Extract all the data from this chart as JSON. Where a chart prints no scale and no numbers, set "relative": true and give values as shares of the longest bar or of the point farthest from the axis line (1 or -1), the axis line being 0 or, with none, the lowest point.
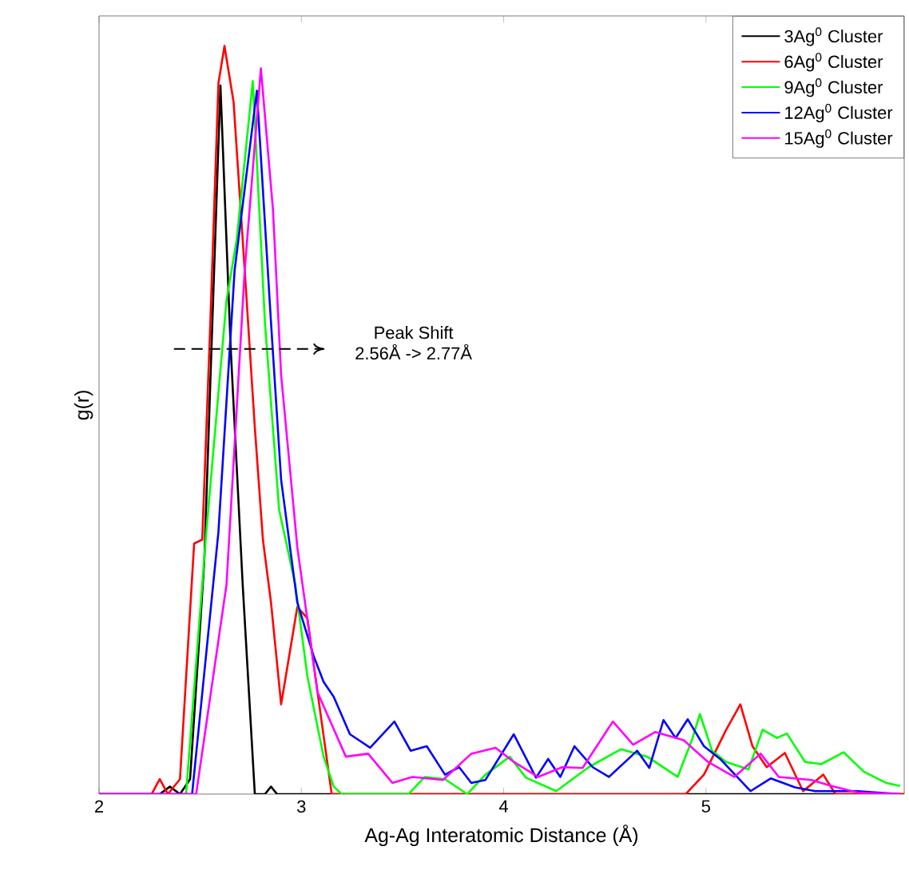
{
  "chart_data": {
    "type": "line",
    "relative": true,
    "xlabel": "Ag-Ag Interatomic Distance (Å)",
    "ylabel": "g(r)",
    "xlim": [
      2,
      5.98
    ],
    "xticks": [
      2,
      3,
      4,
      5
    ],
    "tick_labels": "x",
    "legend": "top right",
    "annotations": [
      "Peak Shift",
      "2.56Å -> 2.77Å"
    ],
    "series": [
      {
        "name": "3Ag$^{0}$ Cluster",
        "color": "#000000",
        "x": [
          2,
          2.3,
          2.35,
          2.4,
          2.45,
          2.52,
          2.56,
          2.6,
          2.65,
          2.71,
          2.77,
          2.82,
          2.85,
          2.88,
          5.98
        ],
        "values": [
          0,
          0,
          0.01,
          0,
          0.02,
          0.31,
          0.63,
          0.947,
          0.6,
          0.28,
          0,
          0,
          0.01,
          0,
          0
        ]
      },
      {
        "name": "6Ag$^{0}$ Cluster",
        "color": "#ff0000",
        "x": [
          2,
          2.26,
          2.3,
          2.34,
          2.4,
          2.47,
          2.51,
          2.55,
          2.59,
          2.62,
          2.665,
          2.72,
          2.77,
          2.81,
          2.85,
          2.9,
          2.94,
          2.98,
          3.03,
          3.08,
          3.15,
          4.9,
          4.99,
          5.1,
          5.17,
          5.23,
          5.3,
          5.39,
          5.48,
          5.58,
          5.64,
          5.98
        ],
        "values": [
          0,
          0,
          0.02,
          0,
          0.02,
          0.335,
          0.34,
          0.63,
          0.95,
          1,
          0.925,
          0.7,
          0.49,
          0.34,
          0.256,
          0.12,
          0.185,
          0.25,
          0.235,
          0.136,
          0,
          0,
          0.026,
          0.086,
          0.12,
          0.064,
          0.036,
          0.055,
          0.004,
          0.026,
          0,
          0
        ]
      },
      {
        "name": "9Ag$^{0}$ Cluster",
        "color": "#00ff00",
        "x": [
          2,
          2.43,
          2.53,
          2.63,
          2.68,
          2.76,
          2.82,
          2.89,
          2.97,
          3.03,
          3.11,
          3.16,
          3.2,
          3.53,
          3.61,
          3.71,
          3.82,
          3.91,
          4.03,
          4.11,
          4.26,
          4.42,
          4.58,
          4.71,
          4.86,
          4.93,
          4.97,
          5.03,
          5.1,
          5.21,
          5.28,
          5.35,
          5.4,
          5.49,
          5.57,
          5.68,
          5.78,
          5.89,
          5.96
        ],
        "values": [
          0,
          0,
          0.35,
          0.66,
          0.74,
          0.953,
          0.63,
          0.38,
          0.28,
          0.157,
          0.05,
          0.01,
          0,
          0,
          0.023,
          0.02,
          0,
          0.026,
          0.05,
          0.022,
          0.004,
          0.036,
          0.06,
          0.05,
          0.023,
          0.072,
          0.107,
          0.058,
          0.043,
          0.033,
          0.086,
          0.075,
          0.081,
          0.043,
          0.04,
          0.056,
          0.03,
          0.015,
          0.011
        ]
      },
      {
        "name": "12Ag$^{0}$ Cluster",
        "color": "#0000ff",
        "x": [
          2,
          2.46,
          2.59,
          2.67,
          2.78,
          2.85,
          2.9,
          2.98,
          3.06,
          3.11,
          3.16,
          3.24,
          3.34,
          3.46,
          3.54,
          3.62,
          3.71,
          3.78,
          3.84,
          3.91,
          4.05,
          4.16,
          4.22,
          4.28,
          4.35,
          4.44,
          4.52,
          4.66,
          4.72,
          4.79,
          4.85,
          4.91,
          4.99,
          5.07,
          5.22,
          5.32,
          5.44,
          5.54,
          5.75,
          5.96
        ],
        "values": [
          0,
          0,
          0.35,
          0.7,
          0.94,
          0.63,
          0.42,
          0.256,
          0.185,
          0.15,
          0.13,
          0.08,
          0.062,
          0.097,
          0.058,
          0.064,
          0.026,
          0.036,
          0.015,
          0.019,
          0.08,
          0.022,
          0.047,
          0.023,
          0.064,
          0.036,
          0.023,
          0.058,
          0.035,
          0.099,
          0.075,
          0.1,
          0.064,
          0.047,
          0.004,
          0.021,
          0.009,
          0.004,
          0.004,
          0
        ]
      },
      {
        "name": "15Ag$^{0}$ Cluster",
        "color": "#ff00ff",
        "x": [
          2,
          2.48,
          2.63,
          2.72,
          2.8,
          2.86,
          2.9,
          2.98,
          3.08,
          3.22,
          3.33,
          3.45,
          3.55,
          3.7,
          3.84,
          3.96,
          4.05,
          4.17,
          4.29,
          4.39,
          4.54,
          4.64,
          4.75,
          4.89,
          5.01,
          5.14,
          5.27,
          5.36,
          5.52,
          5.62,
          5.75,
          5.96
        ],
        "values": [
          0,
          0,
          0.28,
          0.7,
          0.97,
          0.78,
          0.56,
          0.33,
          0.136,
          0.05,
          0.054,
          0.015,
          0.023,
          0.019,
          0.054,
          0.062,
          0.043,
          0.023,
          0.036,
          0.035,
          0.097,
          0.066,
          0.083,
          0.072,
          0.043,
          0.023,
          0.054,
          0.023,
          0.019,
          0.011,
          0.002,
          0
        ]
      }
    ]
  }
}
